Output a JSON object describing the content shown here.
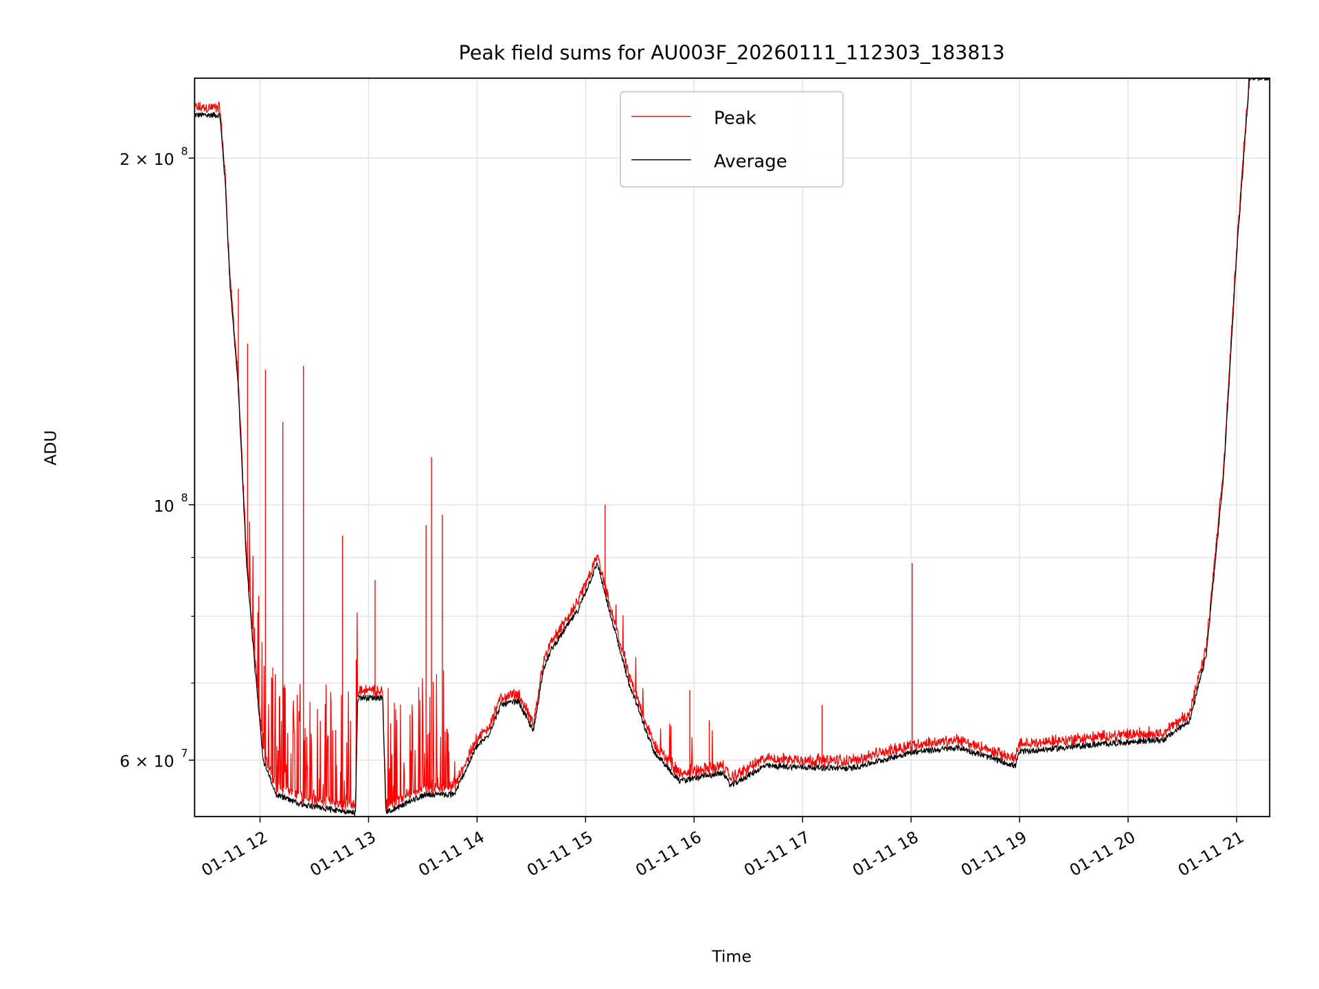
{
  "chart_data": {
    "type": "line",
    "title": "Peak field sums for AU003F_20260111_112303_183813",
    "xlabel": "Time",
    "ylabel": "ADU",
    "yscale": "log",
    "x_unit": "hour of day 2026-01-11",
    "y_unit": "ADU",
    "xlim": [
      11.397,
      21.305
    ],
    "ylim": [
      53600000,
      234700000
    ],
    "grid": true,
    "legend_position": "upper-center",
    "x_ticks": [
      {
        "value": 12,
        "label": "01-11 12"
      },
      {
        "value": 13,
        "label": "01-11 13"
      },
      {
        "value": 14,
        "label": "01-11 14"
      },
      {
        "value": 15,
        "label": "01-11 15"
      },
      {
        "value": 16,
        "label": "01-11 16"
      },
      {
        "value": 17,
        "label": "01-11 17"
      },
      {
        "value": 18,
        "label": "01-11 18"
      },
      {
        "value": 19,
        "label": "01-11 19"
      },
      {
        "value": 20,
        "label": "01-11 20"
      },
      {
        "value": 21,
        "label": "01-11 21"
      }
    ],
    "y_ticks": [
      {
        "value": 200000000,
        "mant": "2 × 10",
        "exp": "8"
      },
      {
        "value": 100000000,
        "mant": "10",
        "exp": "8"
      },
      {
        "value": 60000000,
        "mant": "6 × 10",
        "exp": "7"
      }
    ],
    "y_minor_grid": [
      70000000,
      80000000,
      90000000
    ],
    "series": [
      {
        "name": "Peak",
        "color": "#ff0000",
        "spikes": [
          [
            11.8,
            154000000
          ],
          [
            11.885,
            138000000
          ],
          [
            12.05,
            131000000
          ],
          [
            12.21,
            118000000
          ],
          [
            12.4,
            132000000
          ],
          [
            12.76,
            94000000
          ],
          [
            13.06,
            86000000
          ],
          [
            13.53,
            96000000
          ],
          [
            13.58,
            110000000
          ],
          [
            13.68,
            98000000
          ],
          [
            15.18,
            100000000
          ],
          [
            15.96,
            69000000
          ],
          [
            16.14,
            65000000
          ],
          [
            17.18,
            67000000
          ],
          [
            18.01,
            89000000
          ]
        ]
      },
      {
        "name": "Average",
        "color": "#000000",
        "points": [
          [
            11.4,
            218000000
          ],
          [
            11.63,
            218000000
          ],
          [
            11.68,
            190000000
          ],
          [
            11.72,
            157000000
          ],
          [
            11.8,
            126000000
          ],
          [
            11.875,
            89000000
          ],
          [
            11.953,
            72000000
          ],
          [
            12.03,
            60000000
          ],
          [
            12.15,
            56000000
          ],
          [
            12.35,
            55000000
          ],
          [
            12.85,
            54000000
          ],
          [
            12.88,
            54000000
          ],
          [
            12.9,
            68000000
          ],
          [
            13.13,
            68000000
          ],
          [
            13.16,
            54000000
          ],
          [
            13.52,
            56000000
          ],
          [
            13.79,
            56000000
          ],
          [
            13.99,
            61500000
          ],
          [
            14.1,
            63000000
          ],
          [
            14.22,
            67000000
          ],
          [
            14.38,
            67500000
          ],
          [
            14.52,
            63500000
          ],
          [
            14.61,
            72000000
          ],
          [
            14.69,
            75000000
          ],
          [
            14.93,
            81000000
          ],
          [
            15.11,
            89000000
          ],
          [
            15.18,
            83500000
          ],
          [
            15.4,
            70000000
          ],
          [
            15.63,
            61000000
          ],
          [
            15.87,
            57500000
          ],
          [
            16.26,
            58500000
          ],
          [
            16.34,
            57000000
          ],
          [
            16.65,
            59300000
          ],
          [
            17.44,
            59000000
          ],
          [
            18.02,
            61000000
          ],
          [
            18.45,
            61500000
          ],
          [
            18.96,
            59300000
          ],
          [
            19.0,
            61000000
          ],
          [
            19.79,
            62000000
          ],
          [
            20.33,
            62500000
          ],
          [
            20.57,
            65000000
          ],
          [
            20.72,
            74000000
          ],
          [
            20.88,
            106000000
          ],
          [
            21.0,
            165000000
          ],
          [
            21.12,
            235000000
          ]
        ]
      }
    ]
  }
}
